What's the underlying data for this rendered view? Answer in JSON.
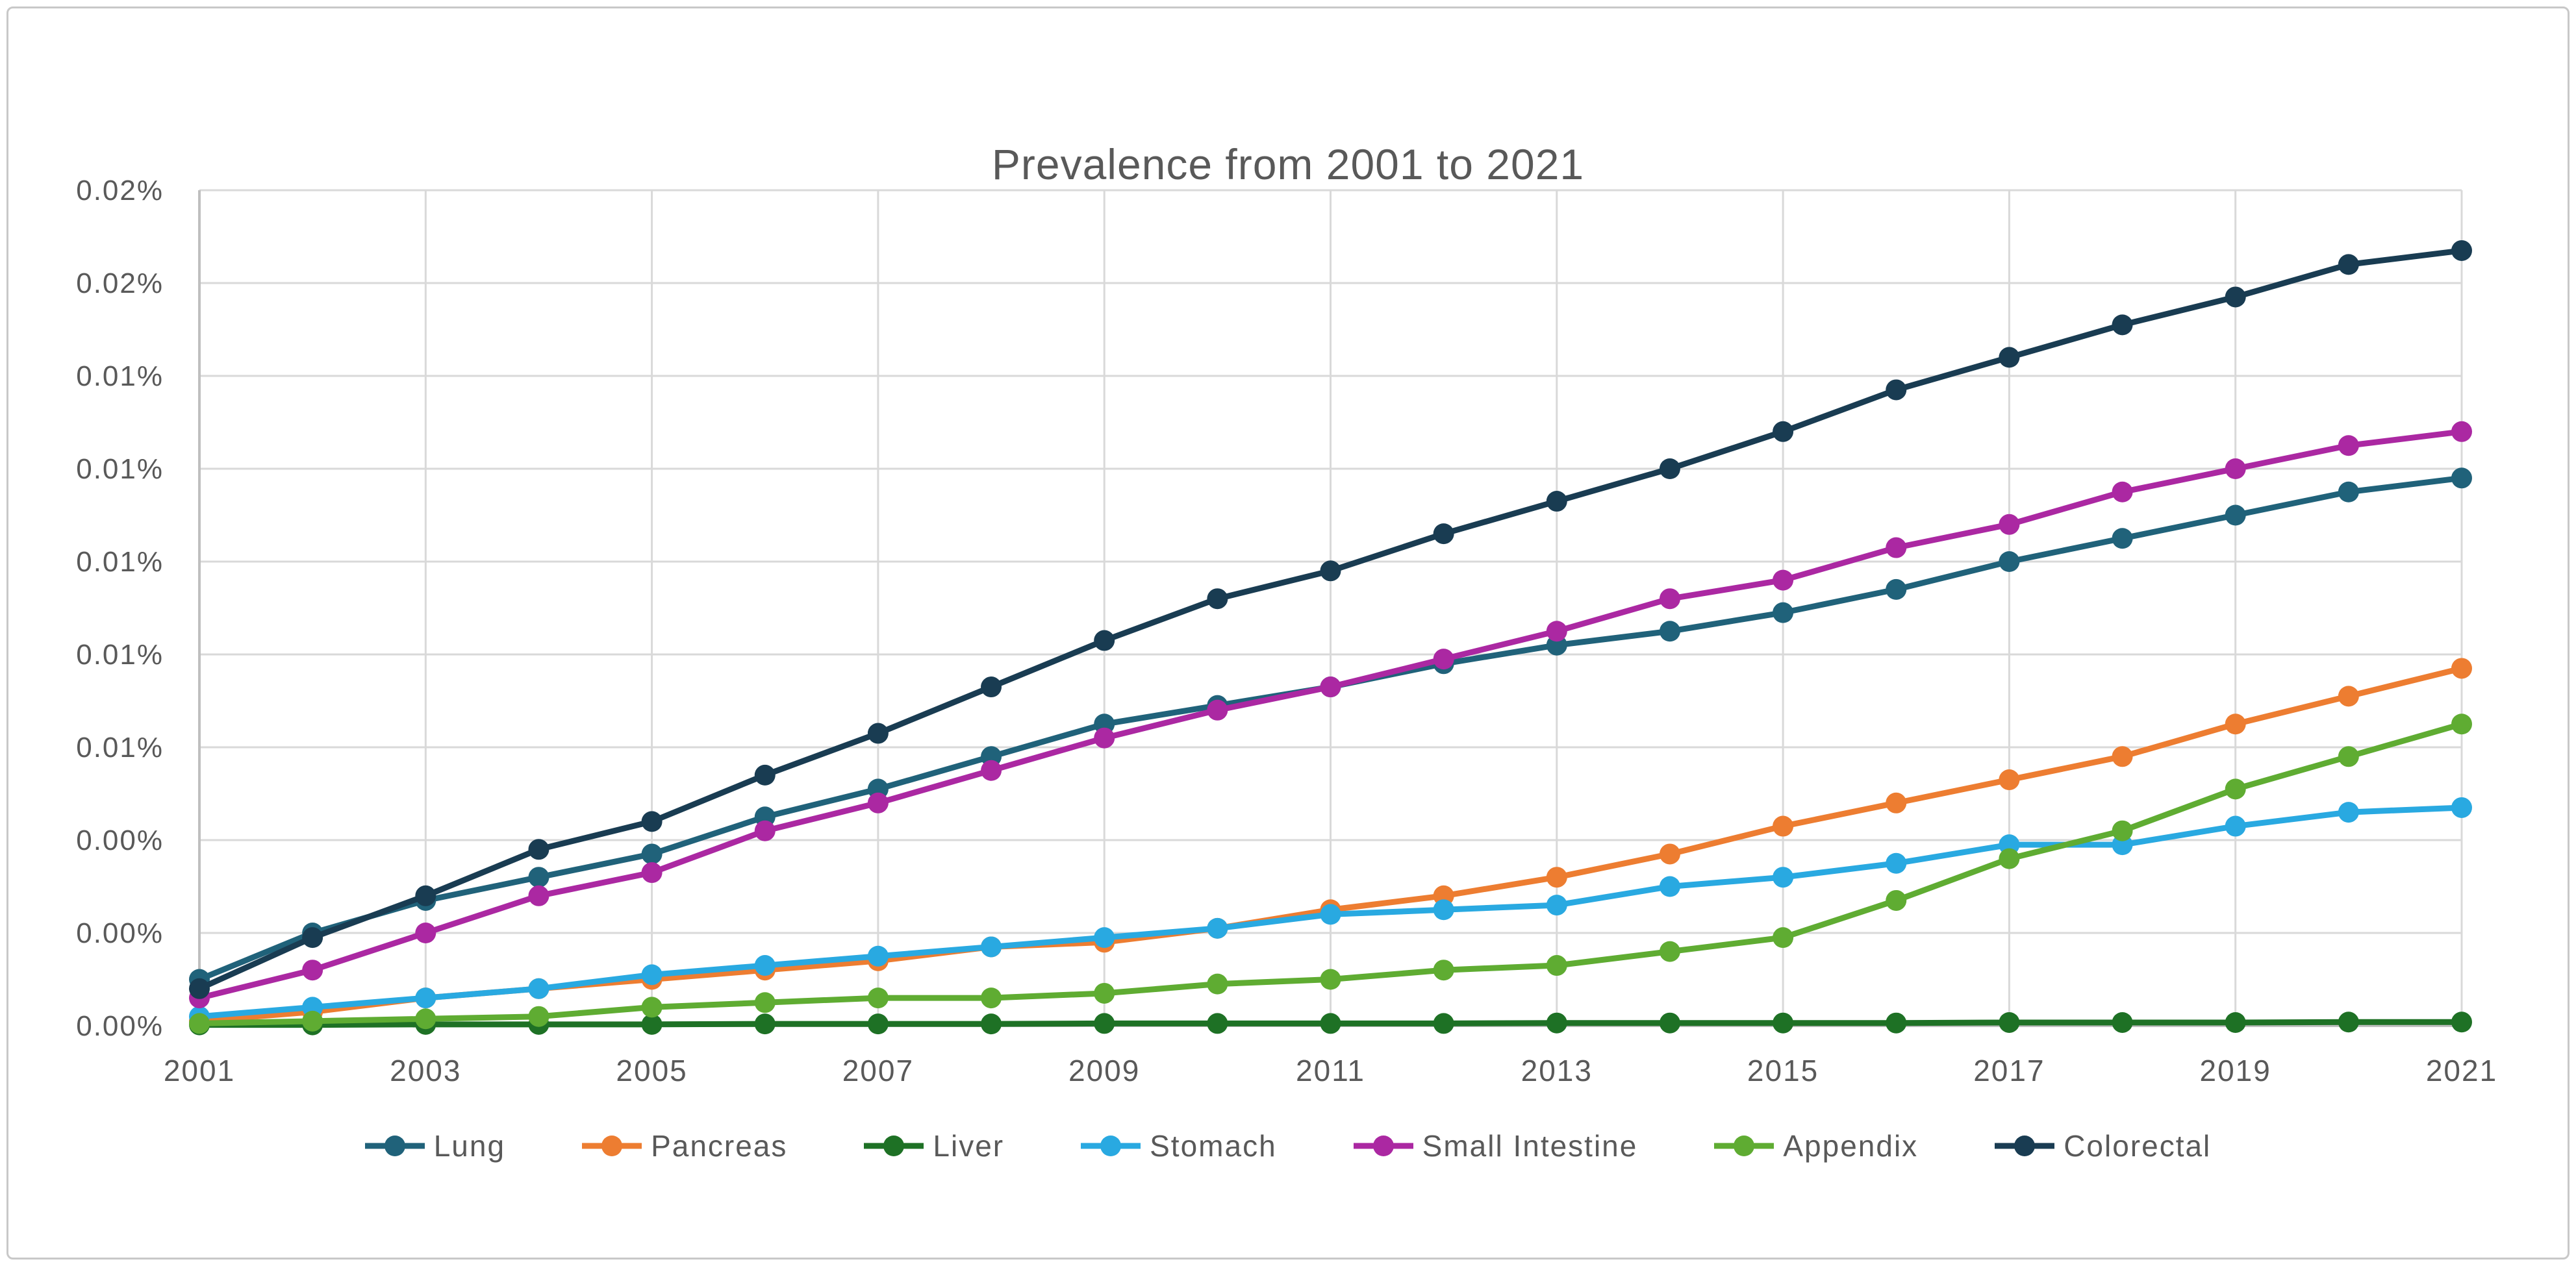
{
  "chart": {
    "title": "Prevalence from 2001 to 2021"
  },
  "axes": {
    "y_tick_labels_top_to_bottom": [
      "0.02%",
      "0.02%",
      "0.01%",
      "0.01%",
      "0.01%",
      "0.01%",
      "0.01%",
      "0.00%",
      "0.00%",
      "0.00%"
    ],
    "x_tick_labels": [
      "2001",
      "2003",
      "2005",
      "2007",
      "2009",
      "2011",
      "2013",
      "2015",
      "2017",
      "2019",
      "2021"
    ]
  },
  "colors": {
    "grid": "#d9d9d9",
    "axis_line": "#bfbfbf",
    "text": "#595959",
    "title_text": "#595959",
    "background": "#ffffff"
  },
  "chart_data": {
    "type": "line",
    "title": "Prevalence from 2001 to 2021",
    "xlabel": "",
    "ylabel": "",
    "x": [
      2001,
      2002,
      2003,
      2004,
      2005,
      2006,
      2007,
      2008,
      2009,
      2010,
      2011,
      2012,
      2013,
      2014,
      2015,
      2016,
      2017,
      2018,
      2019,
      2020,
      2021
    ],
    "x_ticks_shown": [
      2001,
      2003,
      2005,
      2007,
      2009,
      2011,
      2013,
      2015,
      2017,
      2019,
      2021
    ],
    "ylim_percent": [
      0,
      0.018
    ],
    "y_tick_step_percent": 0.002,
    "y_tick_format": "0.00%  (two-decimal rounding of percent values)",
    "grid": true,
    "legend_position": "bottom",
    "marker": "circle",
    "series": [
      {
        "name": "Lung",
        "color": "#20627a",
        "values": [
          0.001,
          0.002,
          0.0027,
          0.0032,
          0.0037,
          0.0045,
          0.0051,
          0.0058,
          0.0065,
          0.0069,
          0.0073,
          0.0078,
          0.0082,
          0.0085,
          0.0089,
          0.0094,
          0.01,
          0.0105,
          0.011,
          0.0115,
          0.0118
        ]
      },
      {
        "name": "Pancreas",
        "color": "#ed7d31",
        "values": [
          0.0001,
          0.0003,
          0.0006,
          0.0008,
          0.001,
          0.0012,
          0.0014,
          0.0017,
          0.0018,
          0.0021,
          0.0025,
          0.0028,
          0.0032,
          0.0037,
          0.0043,
          0.0048,
          0.0053,
          0.0058,
          0.0065,
          0.0071,
          0.0077
        ]
      },
      {
        "name": "Liver",
        "color": "#1e7125",
        "values": [
          2e-05,
          2e-05,
          3e-05,
          3e-05,
          3e-05,
          4e-05,
          4e-05,
          4e-05,
          5e-05,
          5e-05,
          5e-05,
          5e-05,
          6e-05,
          6e-05,
          6e-05,
          6e-05,
          7e-05,
          7e-05,
          7e-05,
          8e-05,
          8e-05
        ]
      },
      {
        "name": "Stomach",
        "color": "#29a9e1",
        "values": [
          0.0002,
          0.0004,
          0.0006,
          0.0008,
          0.0011,
          0.0013,
          0.0015,
          0.0017,
          0.0019,
          0.0021,
          0.0024,
          0.0025,
          0.0026,
          0.003,
          0.0032,
          0.0035,
          0.0039,
          0.0039,
          0.0043,
          0.0046,
          0.0047
        ]
      },
      {
        "name": "Small Intestine",
        "color": "#ab28a2",
        "values": [
          0.0006,
          0.0012,
          0.002,
          0.0028,
          0.0033,
          0.0042,
          0.0048,
          0.0055,
          0.0062,
          0.0068,
          0.0073,
          0.0079,
          0.0085,
          0.0092,
          0.0096,
          0.0103,
          0.0108,
          0.0115,
          0.012,
          0.0125,
          0.0128
        ]
      },
      {
        "name": "Appendix",
        "color": "#5fac32",
        "values": [
          5e-05,
          0.0001,
          0.00015,
          0.0002,
          0.0004,
          0.0005,
          0.0006,
          0.0006,
          0.0007,
          0.0009,
          0.001,
          0.0012,
          0.0013,
          0.0016,
          0.0019,
          0.0027,
          0.0036,
          0.0042,
          0.0051,
          0.0058,
          0.0065
        ]
      },
      {
        "name": "Colorectal",
        "color": "#193c52",
        "values": [
          0.0008,
          0.0019,
          0.0028,
          0.0038,
          0.0044,
          0.0054,
          0.0063,
          0.0073,
          0.0083,
          0.0092,
          0.0098,
          0.0106,
          0.0113,
          0.012,
          0.0128,
          0.0137,
          0.0144,
          0.0151,
          0.0157,
          0.0164,
          0.0167
        ]
      }
    ]
  }
}
